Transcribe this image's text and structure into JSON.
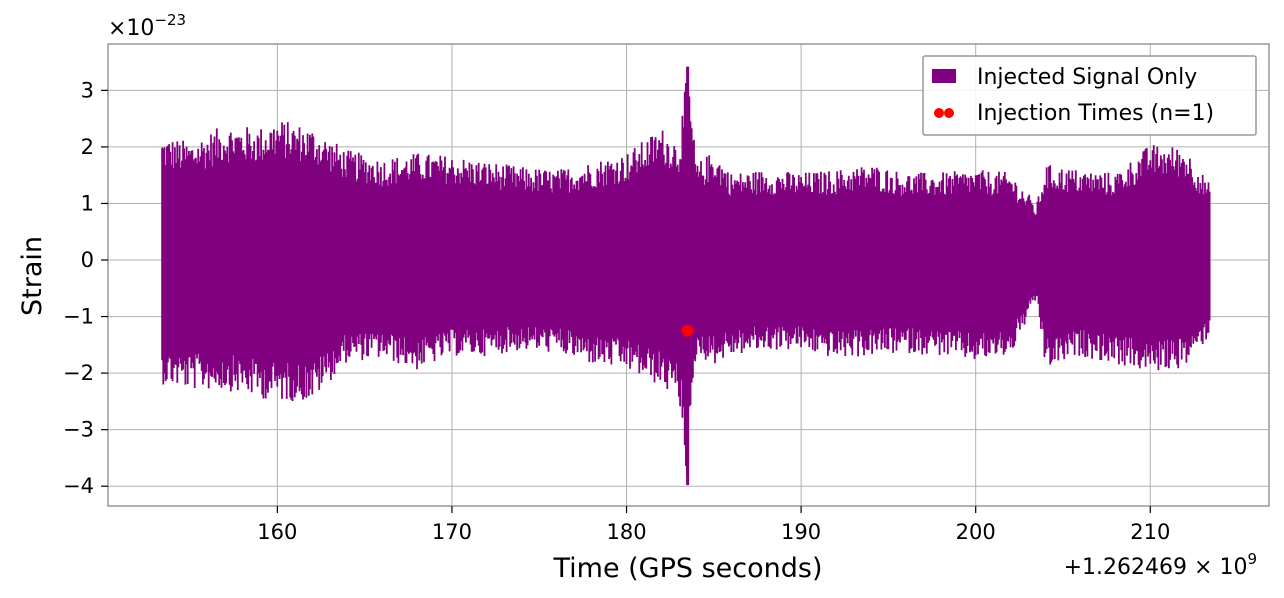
{
  "chart_data": {
    "type": "line",
    "title": "",
    "xlabel": "Time (GPS seconds)",
    "ylabel": "Strain",
    "x_offset_label": "+1.262469 × 10",
    "x_offset_exponent": "9",
    "y_scale_label": "×10",
    "y_scale_exponent": "−23",
    "xlim": [
      150.3,
      216.8
    ],
    "ylim": [
      -4.35,
      3.82
    ],
    "x_ticks": [
      160,
      170,
      180,
      190,
      200,
      210
    ],
    "y_ticks": [
      -4,
      -3,
      -2,
      -1,
      0,
      1,
      2,
      3
    ],
    "y_tick_labels": [
      "−4",
      "−3",
      "−2",
      "−1",
      "0",
      "1",
      "2",
      "3"
    ],
    "grid": true,
    "legend_position": "top-right",
    "series": [
      {
        "name": "Injected Signal Only",
        "color": "#800080",
        "style": "filled-envelope",
        "x": [
          153.4,
          155,
          157,
          159,
          160,
          162,
          164,
          166,
          168,
          170,
          172,
          174,
          176,
          178,
          180,
          182,
          183,
          183.5,
          184,
          185,
          186,
          188,
          190,
          192,
          194,
          196,
          198,
          200,
          202,
          203.5,
          204,
          206,
          208,
          210,
          212,
          213.4
        ],
        "upper": [
          2.2,
          2.1,
          2.4,
          2.35,
          2.5,
          2.35,
          1.95,
          1.8,
          1.9,
          1.85,
          1.75,
          1.65,
          1.6,
          1.75,
          1.9,
          2.35,
          2.1,
          3.42,
          1.7,
          1.95,
          1.55,
          1.6,
          1.55,
          1.6,
          1.7,
          1.55,
          1.55,
          1.6,
          1.55,
          1.0,
          1.7,
          1.6,
          1.55,
          2.05,
          2.0,
          1.35
        ],
        "lower": [
          -2.2,
          -2.3,
          -2.3,
          -2.45,
          -2.5,
          -2.5,
          -1.8,
          -1.75,
          -1.95,
          -1.7,
          -1.7,
          -1.6,
          -1.65,
          -1.85,
          -1.95,
          -2.25,
          -2.5,
          -3.98,
          -1.7,
          -1.85,
          -1.7,
          -1.6,
          -1.6,
          -1.75,
          -1.7,
          -1.65,
          -1.7,
          -1.8,
          -1.7,
          -0.7,
          -1.95,
          -1.7,
          -1.85,
          -2.0,
          -1.9,
          -1.35
        ]
      },
      {
        "name": "Injection Times (n=1)",
        "color": "#ff0000",
        "style": "scatter",
        "points": [
          {
            "x": 183.5,
            "y": -1.25
          }
        ]
      }
    ]
  }
}
